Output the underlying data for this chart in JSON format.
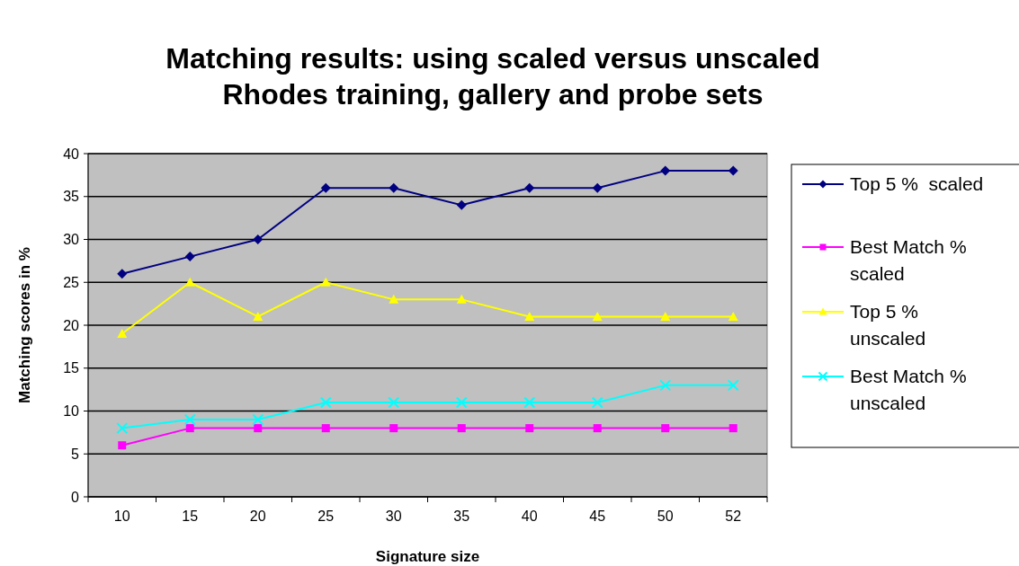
{
  "chart_data": {
    "type": "line",
    "title": "Matching results: using scaled versus unscaled\nRhodes training, gallery and probe sets",
    "xlabel": "Signature size",
    "ylabel": "Matching scores in %",
    "categories": [
      "10",
      "15",
      "20",
      "25",
      "30",
      "35",
      "40",
      "45",
      "50",
      "52"
    ],
    "series": [
      {
        "name": "Top 5 %  scaled",
        "color": "#000080",
        "marker": "diamond",
        "values": [
          26,
          28,
          30,
          36,
          36,
          34,
          36,
          36,
          38,
          38
        ]
      },
      {
        "name": "Best Match % scaled",
        "color": "#ff00ff",
        "marker": "square",
        "values": [
          6,
          8,
          8,
          8,
          8,
          8,
          8,
          8,
          8,
          8
        ]
      },
      {
        "name": "Top 5 % unscaled",
        "color": "#ffff00",
        "marker": "triangle",
        "values": [
          19,
          25,
          21,
          25,
          23,
          23,
          21,
          21,
          21,
          21
        ]
      },
      {
        "name": "Best Match % unscaled",
        "color": "#00ffff",
        "marker": "cross",
        "values": [
          8,
          9,
          9,
          11,
          11,
          11,
          11,
          11,
          13,
          13
        ]
      }
    ],
    "ylim": [
      0,
      40
    ],
    "yticks": [
      0,
      5,
      10,
      15,
      20,
      25,
      30,
      35,
      40
    ],
    "grid": "y",
    "legend": "right"
  }
}
